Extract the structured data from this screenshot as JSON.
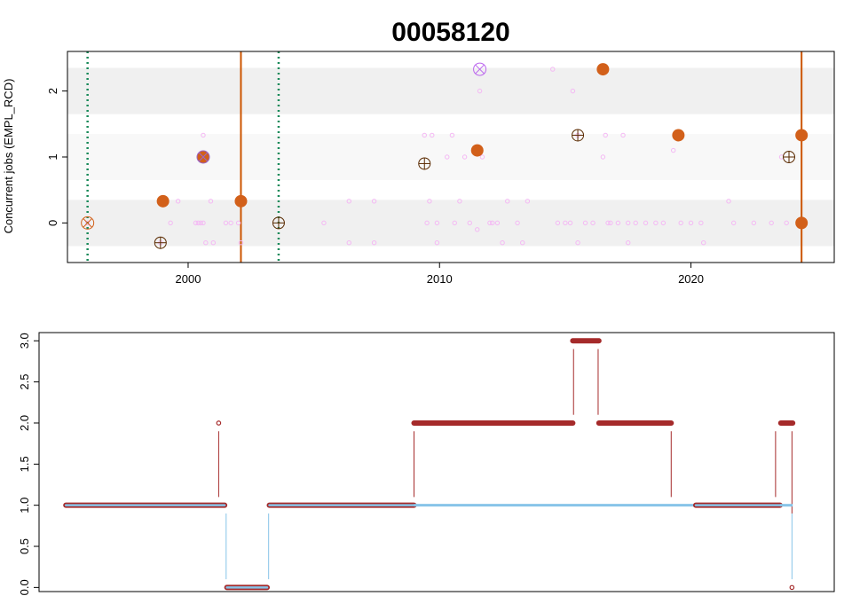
{
  "chart_data": [
    {
      "type": "scatter",
      "title": "00058120",
      "ylabel": "Concurrent jobs (EMPL_RCD)",
      "xlabel": "",
      "xlim": [
        1995.2,
        2025.7
      ],
      "ylim": [
        -0.6,
        2.6
      ],
      "x_ticks": [
        2000,
        2010,
        2020
      ],
      "y_ticks": [
        0,
        1,
        2
      ],
      "grid": false,
      "bands": [
        {
          "y0": -0.35,
          "y1": 0.35,
          "color": "#f0f0f0"
        },
        {
          "y0": 0.65,
          "y1": 1.35,
          "color": "#f8f8f8"
        },
        {
          "y0": 1.65,
          "y1": 2.35,
          "color": "#f0f0f0"
        }
      ],
      "vlines": [
        {
          "x": 1996.0,
          "style": "dotted",
          "color": "#1a8a5a"
        },
        {
          "x": 2002.1,
          "style": "solid",
          "color": "#cc5500"
        },
        {
          "x": 2003.6,
          "style": "dotted",
          "color": "#1a8a5a"
        },
        {
          "x": 2024.4,
          "style": "solid",
          "color": "#cc5500"
        }
      ],
      "series": [
        {
          "role": "faint-records",
          "color": "#f4b8f4",
          "points": [
            [
              1996.0,
              0.0
            ],
            [
              1998.9,
              -0.3
            ],
            [
              1999.1,
              0.33
            ],
            [
              1999.3,
              0.0
            ],
            [
              1999.6,
              0.33
            ],
            [
              2000.3,
              0.0
            ],
            [
              2000.4,
              0.0
            ],
            [
              2000.5,
              0.0
            ],
            [
              2000.6,
              0.0
            ],
            [
              2000.6,
              1.33
            ],
            [
              2000.7,
              -0.3
            ],
            [
              2000.9,
              0.33
            ],
            [
              2001.0,
              -0.3
            ],
            [
              2001.5,
              0.0
            ],
            [
              2001.7,
              0.0
            ],
            [
              2002.0,
              0.0
            ],
            [
              2002.1,
              -0.3
            ],
            [
              2005.4,
              0.0
            ],
            [
              2006.4,
              0.33
            ],
            [
              2006.4,
              -0.3
            ],
            [
              2007.4,
              0.33
            ],
            [
              2007.4,
              -0.3
            ],
            [
              2009.4,
              1.33
            ],
            [
              2009.5,
              0.0
            ],
            [
              2009.6,
              0.33
            ],
            [
              2009.7,
              1.33
            ],
            [
              2009.9,
              0.0
            ],
            [
              2009.9,
              -0.3
            ],
            [
              2010.3,
              1.0
            ],
            [
              2010.5,
              1.33
            ],
            [
              2010.6,
              0.0
            ],
            [
              2010.8,
              0.33
            ],
            [
              2011.0,
              1.0
            ],
            [
              2011.2,
              0.0
            ],
            [
              2011.5,
              -0.1
            ],
            [
              2011.6,
              2.0
            ],
            [
              2011.7,
              1.0
            ],
            [
              2012.0,
              0.0
            ],
            [
              2012.1,
              0.0
            ],
            [
              2012.3,
              0.0
            ],
            [
              2012.5,
              -0.3
            ],
            [
              2012.7,
              0.33
            ],
            [
              2013.1,
              0.0
            ],
            [
              2013.3,
              -0.3
            ],
            [
              2013.5,
              0.33
            ],
            [
              2014.5,
              2.33
            ],
            [
              2014.7,
              0.0
            ],
            [
              2015.0,
              0.0
            ],
            [
              2015.2,
              0.0
            ],
            [
              2015.3,
              2.0
            ],
            [
              2015.5,
              1.33
            ],
            [
              2015.5,
              -0.3
            ],
            [
              2015.8,
              0.0
            ],
            [
              2016.1,
              0.0
            ],
            [
              2016.5,
              1.0
            ],
            [
              2016.6,
              1.33
            ],
            [
              2016.7,
              0.0
            ],
            [
              2016.8,
              0.0
            ],
            [
              2017.1,
              0.0
            ],
            [
              2017.3,
              1.33
            ],
            [
              2017.5,
              0.0
            ],
            [
              2017.5,
              -0.3
            ],
            [
              2017.8,
              0.0
            ],
            [
              2018.2,
              0.0
            ],
            [
              2018.6,
              0.0
            ],
            [
              2018.9,
              0.0
            ],
            [
              2019.3,
              1.1
            ],
            [
              2019.6,
              0.0
            ],
            [
              2020.0,
              0.0
            ],
            [
              2020.4,
              0.0
            ],
            [
              2020.5,
              -0.3
            ],
            [
              2021.5,
              0.33
            ],
            [
              2021.7,
              0.0
            ],
            [
              2022.5,
              0.0
            ],
            [
              2023.2,
              0.0
            ],
            [
              2023.6,
              1.0
            ],
            [
              2023.8,
              0.0
            ]
          ]
        },
        {
          "role": "orange-points",
          "color": "#d2601a",
          "points": [
            [
              1999.0,
              0.33
            ],
            [
              2000.6,
              1.0
            ],
            [
              2002.1,
              0.33
            ],
            [
              2011.5,
              1.1
            ],
            [
              2016.5,
              2.33
            ],
            [
              2019.5,
              1.33
            ],
            [
              2024.4,
              1.33
            ],
            [
              2024.4,
              0.0
            ]
          ]
        },
        {
          "role": "crosshair-points",
          "color": "#5a2a00",
          "points": [
            [
              1998.9,
              -0.3
            ],
            [
              2003.6,
              0.0
            ],
            [
              2009.4,
              0.9
            ],
            [
              2015.5,
              1.33
            ],
            [
              2023.9,
              1.0
            ]
          ]
        },
        {
          "role": "x-marked-points",
          "points": [
            {
              "x": 1996.0,
              "y": 0.0,
              "color": "#d2601a"
            },
            {
              "x": 2000.6,
              "y": 1.0,
              "color": "#9966cc"
            },
            {
              "x": 2011.6,
              "y": 2.33,
              "color": "#bb66ee"
            }
          ]
        }
      ]
    },
    {
      "type": "line",
      "title": "",
      "xlabel": "",
      "ylabel": "",
      "ylim": [
        -0.05,
        3.1
      ],
      "y_ticks": [
        "0.0",
        "0.5",
        "1.0",
        "1.5",
        "2.0",
        "2.5",
        "3.0"
      ],
      "grid": false,
      "x_domain": [
        0,
        100
      ],
      "colors": {
        "thick_red": "#a52a2a",
        "light_blue": "#87c4e8",
        "thin_red": "#a52a2a"
      },
      "segments": [
        {
          "x0": 0.5,
          "x1": 21.8,
          "y": 1.0,
          "style": "red-outline-blue-fill"
        },
        {
          "x0": 22.1,
          "x1": 27.5,
          "y": 0.0,
          "style": "red-outline-blue-fill"
        },
        {
          "x0": 27.8,
          "x1": 47.2,
          "y": 1.0,
          "style": "red-outline-blue-fill"
        },
        {
          "x0": 47.2,
          "x1": 85.0,
          "y": 1.0,
          "style": "blue-only"
        },
        {
          "x0": 85.0,
          "x1": 96.3,
          "y": 1.0,
          "style": "red-outline-blue-fill"
        },
        {
          "x0": 96.3,
          "x1": 98.0,
          "y": 1.0,
          "style": "blue-only"
        },
        {
          "x0": 47.2,
          "x1": 68.5,
          "y": 2.0,
          "style": "thick-red"
        },
        {
          "x0": 68.5,
          "x1": 72.0,
          "y": 3.0,
          "style": "thick-red"
        },
        {
          "x0": 72.0,
          "x1": 81.7,
          "y": 2.0,
          "style": "thick-red"
        },
        {
          "x0": 96.4,
          "x1": 98.0,
          "y": 2.0,
          "style": "thick-red"
        }
      ],
      "drops": [
        {
          "x": 21.0,
          "y0": 1.1,
          "y1": 1.9,
          "color": "red"
        },
        {
          "x": 22.0,
          "y0": 0.1,
          "y1": 0.9,
          "color": "blue"
        },
        {
          "x": 27.7,
          "y0": 0.1,
          "y1": 0.9,
          "color": "blue"
        },
        {
          "x": 47.2,
          "y0": 1.1,
          "y1": 1.9,
          "color": "red"
        },
        {
          "x": 68.6,
          "y0": 2.1,
          "y1": 2.9,
          "color": "red"
        },
        {
          "x": 71.9,
          "y0": 2.1,
          "y1": 2.9,
          "color": "red"
        },
        {
          "x": 81.7,
          "y0": 1.1,
          "y1": 1.9,
          "color": "red"
        },
        {
          "x": 95.7,
          "y0": 1.1,
          "y1": 1.9,
          "color": "red"
        },
        {
          "x": 97.9,
          "y0": 0.1,
          "y1": 0.9,
          "color": "blue"
        },
        {
          "x": 97.9,
          "y0": 0.9,
          "y1": 1.9,
          "color": "red"
        }
      ],
      "points": [
        {
          "x": 21.0,
          "y": 2.0
        },
        {
          "x": 97.9,
          "y": 0.0
        }
      ]
    }
  ]
}
